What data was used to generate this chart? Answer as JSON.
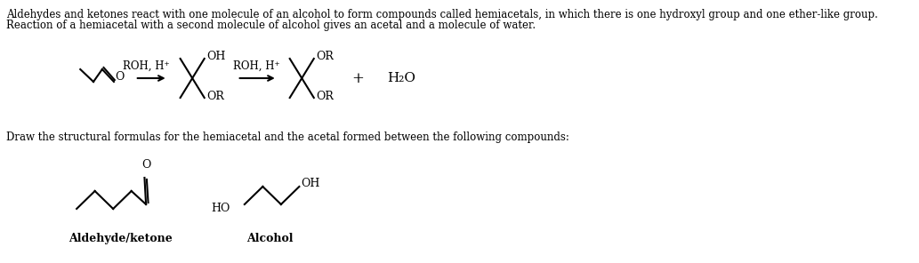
{
  "bg_color": "#ffffff",
  "text_color": "#000000",
  "line1": "Aldehydes and ketones react with one molecule of an alcohol to form compounds called hemiacetals, in which there is one hydroxyl group and one ether-like group.",
  "line2": "Reaction of a hemiacetal with a second molecule of alcohol gives an acetal and a molecule of water.",
  "label1": "ROH, H⁺",
  "label2": "ROH, H⁺",
  "label_oh": "OH",
  "label_or1": "OR",
  "label_or2": "OR",
  "label_or3": "OR",
  "label_or4": "OR",
  "label_o": "O",
  "label_plus": "+",
  "label_h2o": "H₂O",
  "draw_text": "Draw the structural formulas for the hemiacetal and the acetal formed between the following compounds:",
  "aldehyde_label": "Aldehyde/ketone",
  "alcohol_label": "Alcohol",
  "label_ho": "HO",
  "label_oh2": "OH"
}
